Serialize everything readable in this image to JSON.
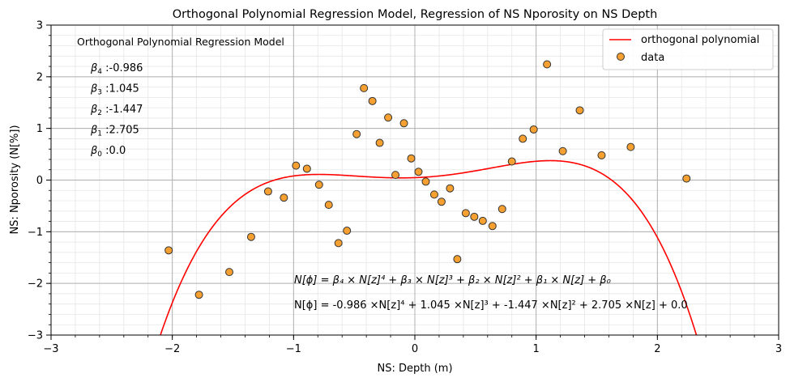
{
  "chart_data": {
    "type": "scatter",
    "title": "Orthogonal Polynomial Regression Model, Regression of NS Nporosity on NS Depth",
    "xlabel": "NS: Depth (m)",
    "ylabel": "NS: Nporosity (N[%])",
    "xlim": [
      -3,
      3
    ],
    "ylim": [
      -3,
      3
    ],
    "xticks": [
      -3,
      -2,
      -1,
      0,
      1,
      2,
      3
    ],
    "xtick_labels": [
      "−3",
      "−2",
      "−1",
      "0",
      "1",
      "2",
      "3"
    ],
    "yticks": [
      -3,
      -2,
      -1,
      0,
      1,
      2,
      3
    ],
    "ytick_labels": [
      "−3",
      "−2",
      "−1",
      "0",
      "1",
      "2",
      "3"
    ],
    "grid": true,
    "legend_position": "top-right",
    "legend": [
      {
        "label": "orthogonal polynomial",
        "type": "line",
        "color": "#ff0000"
      },
      {
        "label": "data",
        "type": "marker",
        "color": "#f5a030"
      }
    ],
    "model": {
      "name": "orthogonal polynomial",
      "color": "#ff0000",
      "coefficients": {
        "b4": -0.2074,
        "b3": 0.0578,
        "b2": 0.3823,
        "b1": 0.0844,
        "b0": 0.0469
      }
    },
    "series": [
      {
        "name": "data",
        "type": "scatter",
        "color": "#f5a030",
        "edge_color": "#333333",
        "x": [
          -2.03,
          -1.78,
          -1.53,
          -1.35,
          -1.21,
          -1.08,
          -0.98,
          -0.89,
          -0.79,
          -0.71,
          -0.63,
          -0.56,
          -0.48,
          -0.42,
          -0.35,
          -0.29,
          -0.22,
          -0.16,
          -0.09,
          -0.03,
          0.03,
          0.09,
          0.16,
          0.22,
          0.29,
          0.35,
          0.42,
          0.49,
          0.56,
          0.64,
          0.72,
          0.8,
          0.89,
          0.98,
          1.09,
          1.22,
          1.36,
          1.54,
          1.78,
          2.24
        ],
        "y": [
          -1.36,
          -2.22,
          -1.78,
          -1.1,
          -0.22,
          -0.34,
          0.28,
          0.22,
          -0.09,
          -0.48,
          -1.22,
          -0.98,
          0.89,
          1.78,
          1.53,
          0.72,
          1.21,
          0.1,
          1.1,
          0.42,
          0.16,
          -0.03,
          -0.28,
          -0.42,
          -0.16,
          -1.53,
          -0.64,
          -0.71,
          -0.79,
          -0.89,
          -0.56,
          0.36,
          0.8,
          0.98,
          2.24,
          0.56,
          1.35,
          0.48,
          0.64,
          0.03
        ]
      }
    ],
    "annotations": {
      "model_label": "Orthogonal Polynomial Regression Model",
      "coefficient_lines": [
        {
          "sym": "β",
          "sub": "4",
          "text": " :-0.986"
        },
        {
          "sym": "β",
          "sub": "3",
          "text": " :1.045"
        },
        {
          "sym": "β",
          "sub": "2",
          "text": " :-1.447"
        },
        {
          "sym": "β",
          "sub": "1",
          "text": " :2.705"
        },
        {
          "sym": "β",
          "sub": "0",
          "text": " :0.0"
        }
      ],
      "equation_general": "N[ϕ] = β₄ × N[z]⁴ + β₃ × N[z]³ + β₂ × N[z]² + β₁ × N[z] + β₀",
      "equation_fitted": "N[ϕ] = -0.986 ×N[z]⁴ + 1.045 ×N[z]³ + -1.447 ×N[z]² + 2.705 ×N[z] + 0.0"
    }
  }
}
